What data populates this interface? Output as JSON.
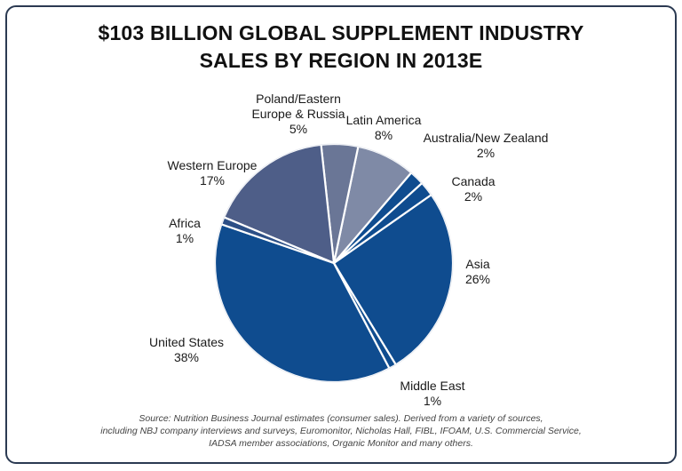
{
  "chart_data": {
    "type": "pie",
    "title_lines": [
      "$103 BILLION GLOBAL SUPPLEMENT INDUSTRY",
      "SALES BY REGION IN 2013E"
    ],
    "slices": [
      {
        "name": "United States",
        "value": 38,
        "label": "38%",
        "color": "#0f4c8f"
      },
      {
        "name": "Middle East",
        "value": 1,
        "label": "1%",
        "color": "#0f4c8f"
      },
      {
        "name": "Asia",
        "value": 26,
        "label": "26%",
        "color": "#0f4c8f"
      },
      {
        "name": "Canada",
        "value": 2,
        "label": "2%",
        "color": "#0f4c8f"
      },
      {
        "name": "Australia/New Zealand",
        "value": 2,
        "label": "2%",
        "color": "#0f4c8f"
      },
      {
        "name": "Latin America",
        "value": 8,
        "label": "8%",
        "color": "#7f8aa6"
      },
      {
        "name": "Poland/Eastern Europe & Russia",
        "value": 5,
        "label": "5%",
        "color": "#6a7696"
      },
      {
        "name": "Western Europe",
        "value": 17,
        "label": "17%",
        "color": "#4e5e88"
      },
      {
        "name": "Africa",
        "value": 1,
        "label": "1%",
        "color": "#2c4f86"
      }
    ],
    "legend": "none",
    "source_lines": [
      "Source: Nutrition Business Journal estimates (consumer sales). Derived from a variety of sources,",
      "including NBJ company interviews and surveys, Euromonitor, Nicholas Hall, FIBL, IFOAM, U.S. Commercial Service,",
      "IADSA member associations, Organic Monitor and many others."
    ]
  }
}
